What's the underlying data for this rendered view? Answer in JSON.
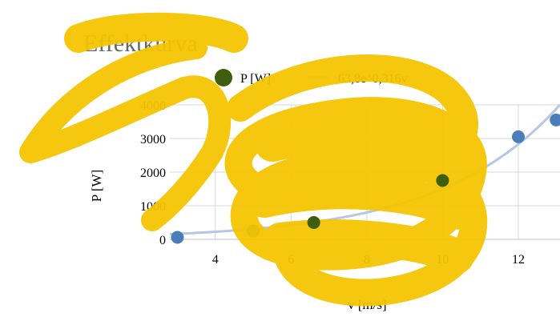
{
  "chart_data": {
    "type": "scatter",
    "title": "Effektkurva",
    "xlabel": "v [m/s]",
    "ylabel": "P [W]",
    "xlim": [
      2.8,
      13.1
    ],
    "ylim": [
      0,
      4000
    ],
    "x_ticks": [
      4,
      6,
      8,
      10,
      12
    ],
    "y_ticks": [
      0,
      1000,
      2000,
      3000,
      4000
    ],
    "grid": true,
    "legend": {
      "placement": "top",
      "entries": [
        "P [W]",
        "63,8e^0,316v"
      ]
    },
    "series": [
      {
        "name": "P [W]",
        "kind": "markers",
        "x": [
          3,
          5,
          6.6,
          10,
          12,
          13
        ],
        "y": [
          60,
          250,
          500,
          1750,
          3050,
          3550
        ],
        "color": "#4a7ebb",
        "highlight_color": "#3f5f0f"
      },
      {
        "name": "63,8e^0,316v",
        "kind": "trendline",
        "a": 63.8,
        "b": 0.316,
        "color": "#b4c7e7"
      }
    ],
    "overlay_color": "#f5c400"
  }
}
